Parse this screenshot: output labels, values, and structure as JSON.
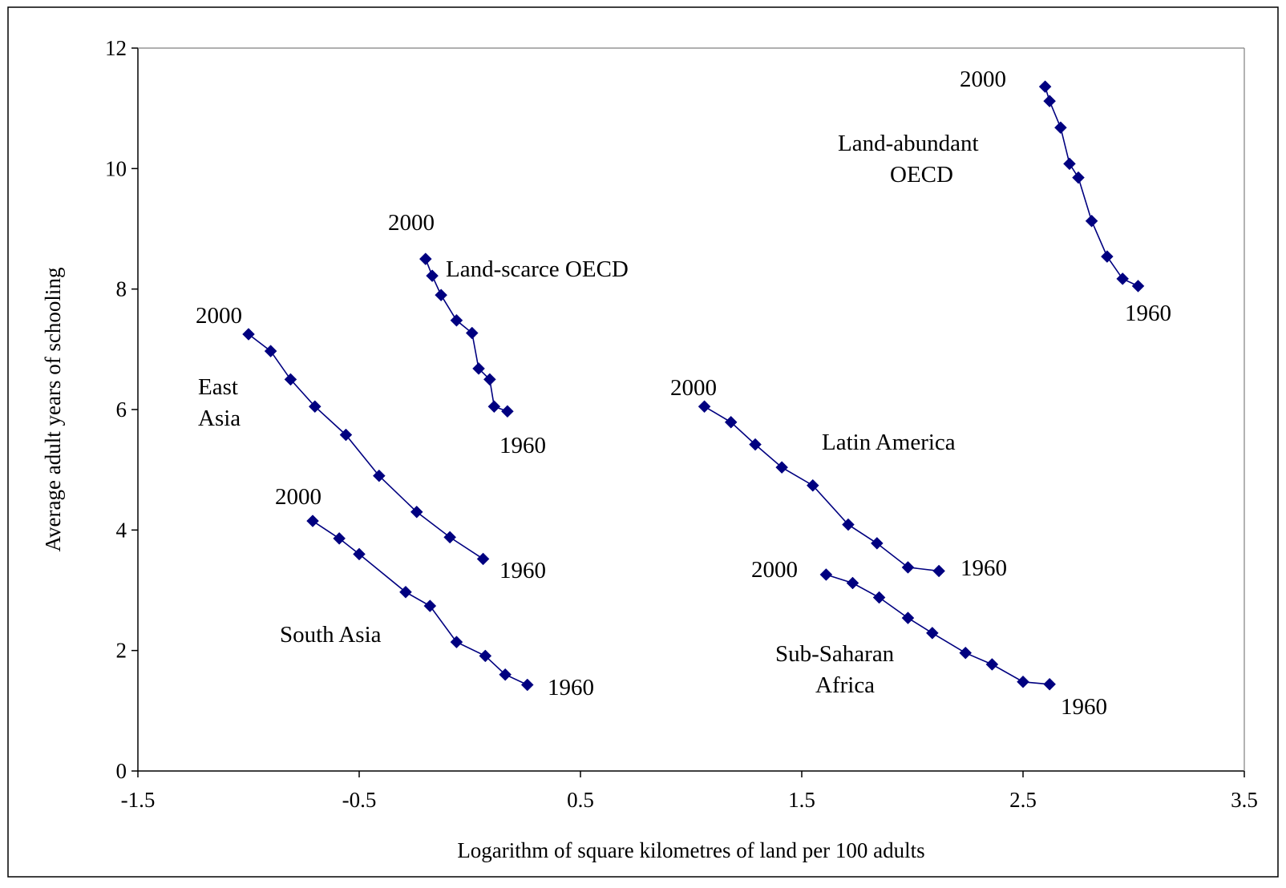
{
  "chart_data": {
    "type": "line",
    "title": "",
    "xlabel": "Logarithm of square kilometres of land per 100 adults",
    "ylabel": "Average adult years of schooling",
    "xlim": [
      -1.5,
      3.5
    ],
    "ylim": [
      0,
      12
    ],
    "x_ticks": [
      -1.5,
      -0.5,
      0.5,
      1.5,
      2.5,
      3.5
    ],
    "x_tick_labels": [
      "-1.5",
      "-0.5",
      "0.5",
      "1.5",
      "2.5",
      "3.5"
    ],
    "y_ticks": [
      0,
      2,
      4,
      6,
      8,
      10,
      12
    ],
    "y_tick_labels": [
      "0",
      "2",
      "4",
      "6",
      "8",
      "10",
      "12"
    ],
    "grid": false,
    "legend": "none",
    "marker": "diamond",
    "series_color": "#000080",
    "series": [
      {
        "name": "East Asia",
        "x": [
          -1.0,
          -0.9,
          -0.81,
          -0.7,
          -0.56,
          -0.41,
          -0.24,
          -0.09,
          0.06
        ],
        "y": [
          7.25,
          6.97,
          6.5,
          6.05,
          5.58,
          4.9,
          4.3,
          3.88,
          3.52
        ]
      },
      {
        "name": "South Asia",
        "x": [
          -0.71,
          -0.59,
          -0.5,
          -0.29,
          -0.18,
          -0.06,
          0.07,
          0.16,
          0.26
        ],
        "y": [
          4.15,
          3.86,
          3.6,
          2.97,
          2.74,
          2.14,
          1.91,
          1.6,
          1.43
        ]
      },
      {
        "name": "Land-scarce OECD",
        "x": [
          -0.2,
          -0.17,
          -0.13,
          -0.06,
          0.01,
          0.04,
          0.09,
          0.11,
          0.17
        ],
        "y": [
          8.5,
          8.22,
          7.9,
          7.48,
          7.27,
          6.68,
          6.5,
          6.05,
          5.97
        ]
      },
      {
        "name": "Latin America",
        "x": [
          1.06,
          1.18,
          1.29,
          1.41,
          1.55,
          1.71,
          1.84,
          1.98,
          2.12
        ],
        "y": [
          6.05,
          5.79,
          5.42,
          5.04,
          4.74,
          4.09,
          3.78,
          3.38,
          3.32
        ]
      },
      {
        "name": "Sub-Saharan Africa",
        "x": [
          1.61,
          1.73,
          1.85,
          1.98,
          2.09,
          2.24,
          2.36,
          2.5,
          2.62
        ],
        "y": [
          3.26,
          3.12,
          2.88,
          2.54,
          2.29,
          1.96,
          1.77,
          1.48,
          1.44
        ]
      },
      {
        "name": "Land-abundant OECD",
        "x": [
          2.6,
          2.62,
          2.67,
          2.71,
          2.75,
          2.81,
          2.88,
          2.95,
          3.02
        ],
        "y": [
          11.36,
          11.12,
          10.68,
          10.08,
          9.85,
          9.13,
          8.54,
          8.17,
          8.05
        ]
      }
    ],
    "annotations": {
      "east_asia_label_1": "East",
      "east_asia_label_2": "Asia",
      "east_asia_2000": "2000",
      "east_asia_1960": "1960",
      "south_asia_label": "South Asia",
      "south_asia_2000": "2000",
      "south_asia_1960": "1960",
      "land_scarce_label": "Land-scarce OECD",
      "land_scarce_2000": "2000",
      "land_scarce_1960": "1960",
      "latin_america_label": "Latin America",
      "latin_america_2000": "2000",
      "latin_america_1960": "1960",
      "ssa_label_1": "Sub-Saharan",
      "ssa_label_2": "Africa",
      "ssa_2000": "2000",
      "ssa_1960": "1960",
      "land_abundant_label_1": "Land-abundant",
      "land_abundant_label_2": "OECD",
      "land_abundant_2000": "2000",
      "land_abundant_1960": "1960"
    }
  }
}
